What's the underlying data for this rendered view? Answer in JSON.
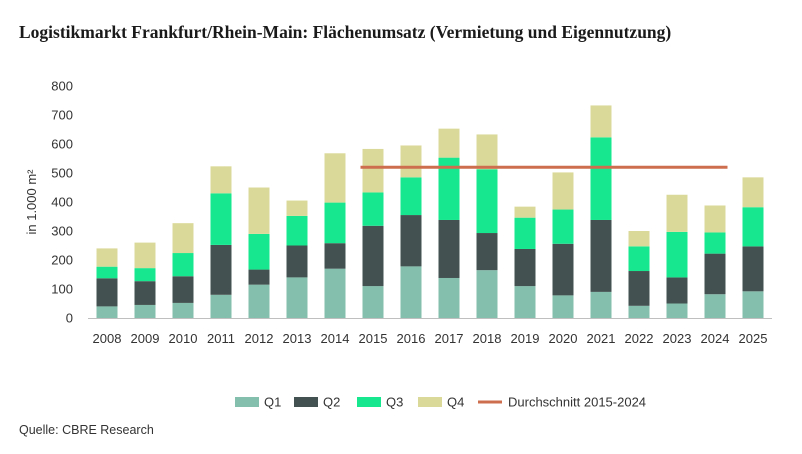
{
  "title": "Logistikmarkt Frankfurt/Rhein-Main: Flächenumsatz (Vermietung und Eigennutzung)",
  "source": "Quelle: CBRE Research",
  "chart_data": {
    "type": "bar",
    "stacked": true,
    "title": "Logistikmarkt Frankfurt/Rhein-Main: Flächenumsatz (Vermietung und Eigennutzung)",
    "xlabel": "",
    "ylabel": "in 1.000 m²",
    "ylim": [
      0,
      800
    ],
    "yticks": [
      0,
      100,
      200,
      300,
      400,
      500,
      600,
      700,
      800
    ],
    "grid": false,
    "legend_position": "bottom",
    "categories": [
      "2008",
      "2009",
      "2010",
      "2011",
      "2012",
      "2013",
      "2014",
      "2015",
      "2016",
      "2017",
      "2018",
      "2019",
      "2020",
      "2021",
      "2022",
      "2023",
      "2024",
      "2025"
    ],
    "series": [
      {
        "name": "Q1",
        "color": "#84bfad",
        "values": [
          40,
          45,
          52,
          80,
          115,
          140,
          170,
          110,
          178,
          138,
          165,
          110,
          78,
          90,
          42,
          50,
          82,
          92
        ]
      },
      {
        "name": "Q2",
        "color": "#435250",
        "values": [
          97,
          82,
          92,
          172,
          52,
          110,
          88,
          208,
          177,
          200,
          128,
          128,
          178,
          248,
          120,
          90,
          140,
          155
        ]
      },
      {
        "name": "Q3",
        "color": "#17e88f",
        "values": [
          40,
          45,
          80,
          178,
          123,
          102,
          140,
          115,
          130,
          215,
          220,
          108,
          118,
          285,
          85,
          157,
          73,
          135
        ]
      },
      {
        "name": "Q4",
        "color": "#dbd99a",
        "values": [
          63,
          88,
          103,
          93,
          160,
          53,
          170,
          150,
          110,
          100,
          120,
          38,
          128,
          110,
          53,
          128,
          93,
          103
        ]
      }
    ],
    "reference_line": {
      "name": "Durchschnitt 2015-2024",
      "color": "#cd6e4e",
      "value": 520,
      "from": "2015",
      "to": "2024"
    }
  }
}
